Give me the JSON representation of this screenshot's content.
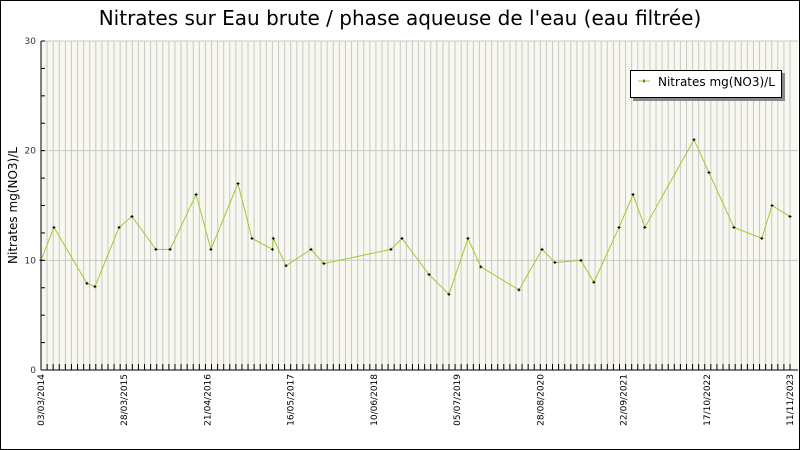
{
  "chart_data": {
    "type": "line",
    "title": "Nitrates sur Eau brute / phase aqueuse de l'eau (eau filtrée)",
    "xlabel": "",
    "ylabel": "Nitrates mg(NO3)/L",
    "ylim": [
      0,
      30
    ],
    "yticks": [
      "0",
      "10",
      "20",
      "30"
    ],
    "xlim": [
      "2014-03-03",
      "2023-11-11"
    ],
    "xticks": [
      "03/03/2014",
      "28/03/2015",
      "21/04/2016",
      "16/05/2017",
      "10/06/2018",
      "05/07/2019",
      "28/08/2020",
      "22/09/2021",
      "17/10/2022",
      "11/11/2023"
    ],
    "grid": true,
    "legend_position": "top-right",
    "colors": {
      "line": "#9acd32",
      "marker": "#000000",
      "plot_bg": "#f8f8f0",
      "grid": "#c8c8c8"
    },
    "series": [
      {
        "name": "Nitrates mg(NO3)/L",
        "x": [
          "2014-03-03",
          "2014-05-03",
          "2014-10-06",
          "2014-11-13",
          "2015-03-07",
          "2015-05-07",
          "2015-08-28",
          "2015-11-03",
          "2016-03-05",
          "2016-05-14",
          "2016-09-19",
          "2016-11-24",
          "2017-03-01",
          "2017-03-05",
          "2017-05-04",
          "2017-08-30",
          "2017-10-30",
          "2018-09-12",
          "2018-11-03",
          "2019-03-11",
          "2019-06-13",
          "2019-09-11",
          "2019-11-11",
          "2020-05-09",
          "2020-08-26",
          "2020-10-26",
          "2021-02-26",
          "2021-04-28",
          "2021-08-25",
          "2021-10-30",
          "2021-12-25",
          "2022-08-14",
          "2022-10-24",
          "2023-02-19",
          "2023-07-01",
          "2023-08-18",
          "2023-11-11"
        ],
        "values": [
          10,
          13,
          7.9,
          7.6,
          13,
          14,
          11,
          11,
          16,
          11,
          17,
          12,
          11,
          12,
          9.5,
          11,
          9.7,
          11,
          12,
          8.7,
          6.9,
          12,
          9.4,
          7.3,
          11,
          9.8,
          10,
          8,
          13,
          16,
          13,
          21,
          18,
          13,
          12,
          15,
          14
        ]
      }
    ]
  }
}
